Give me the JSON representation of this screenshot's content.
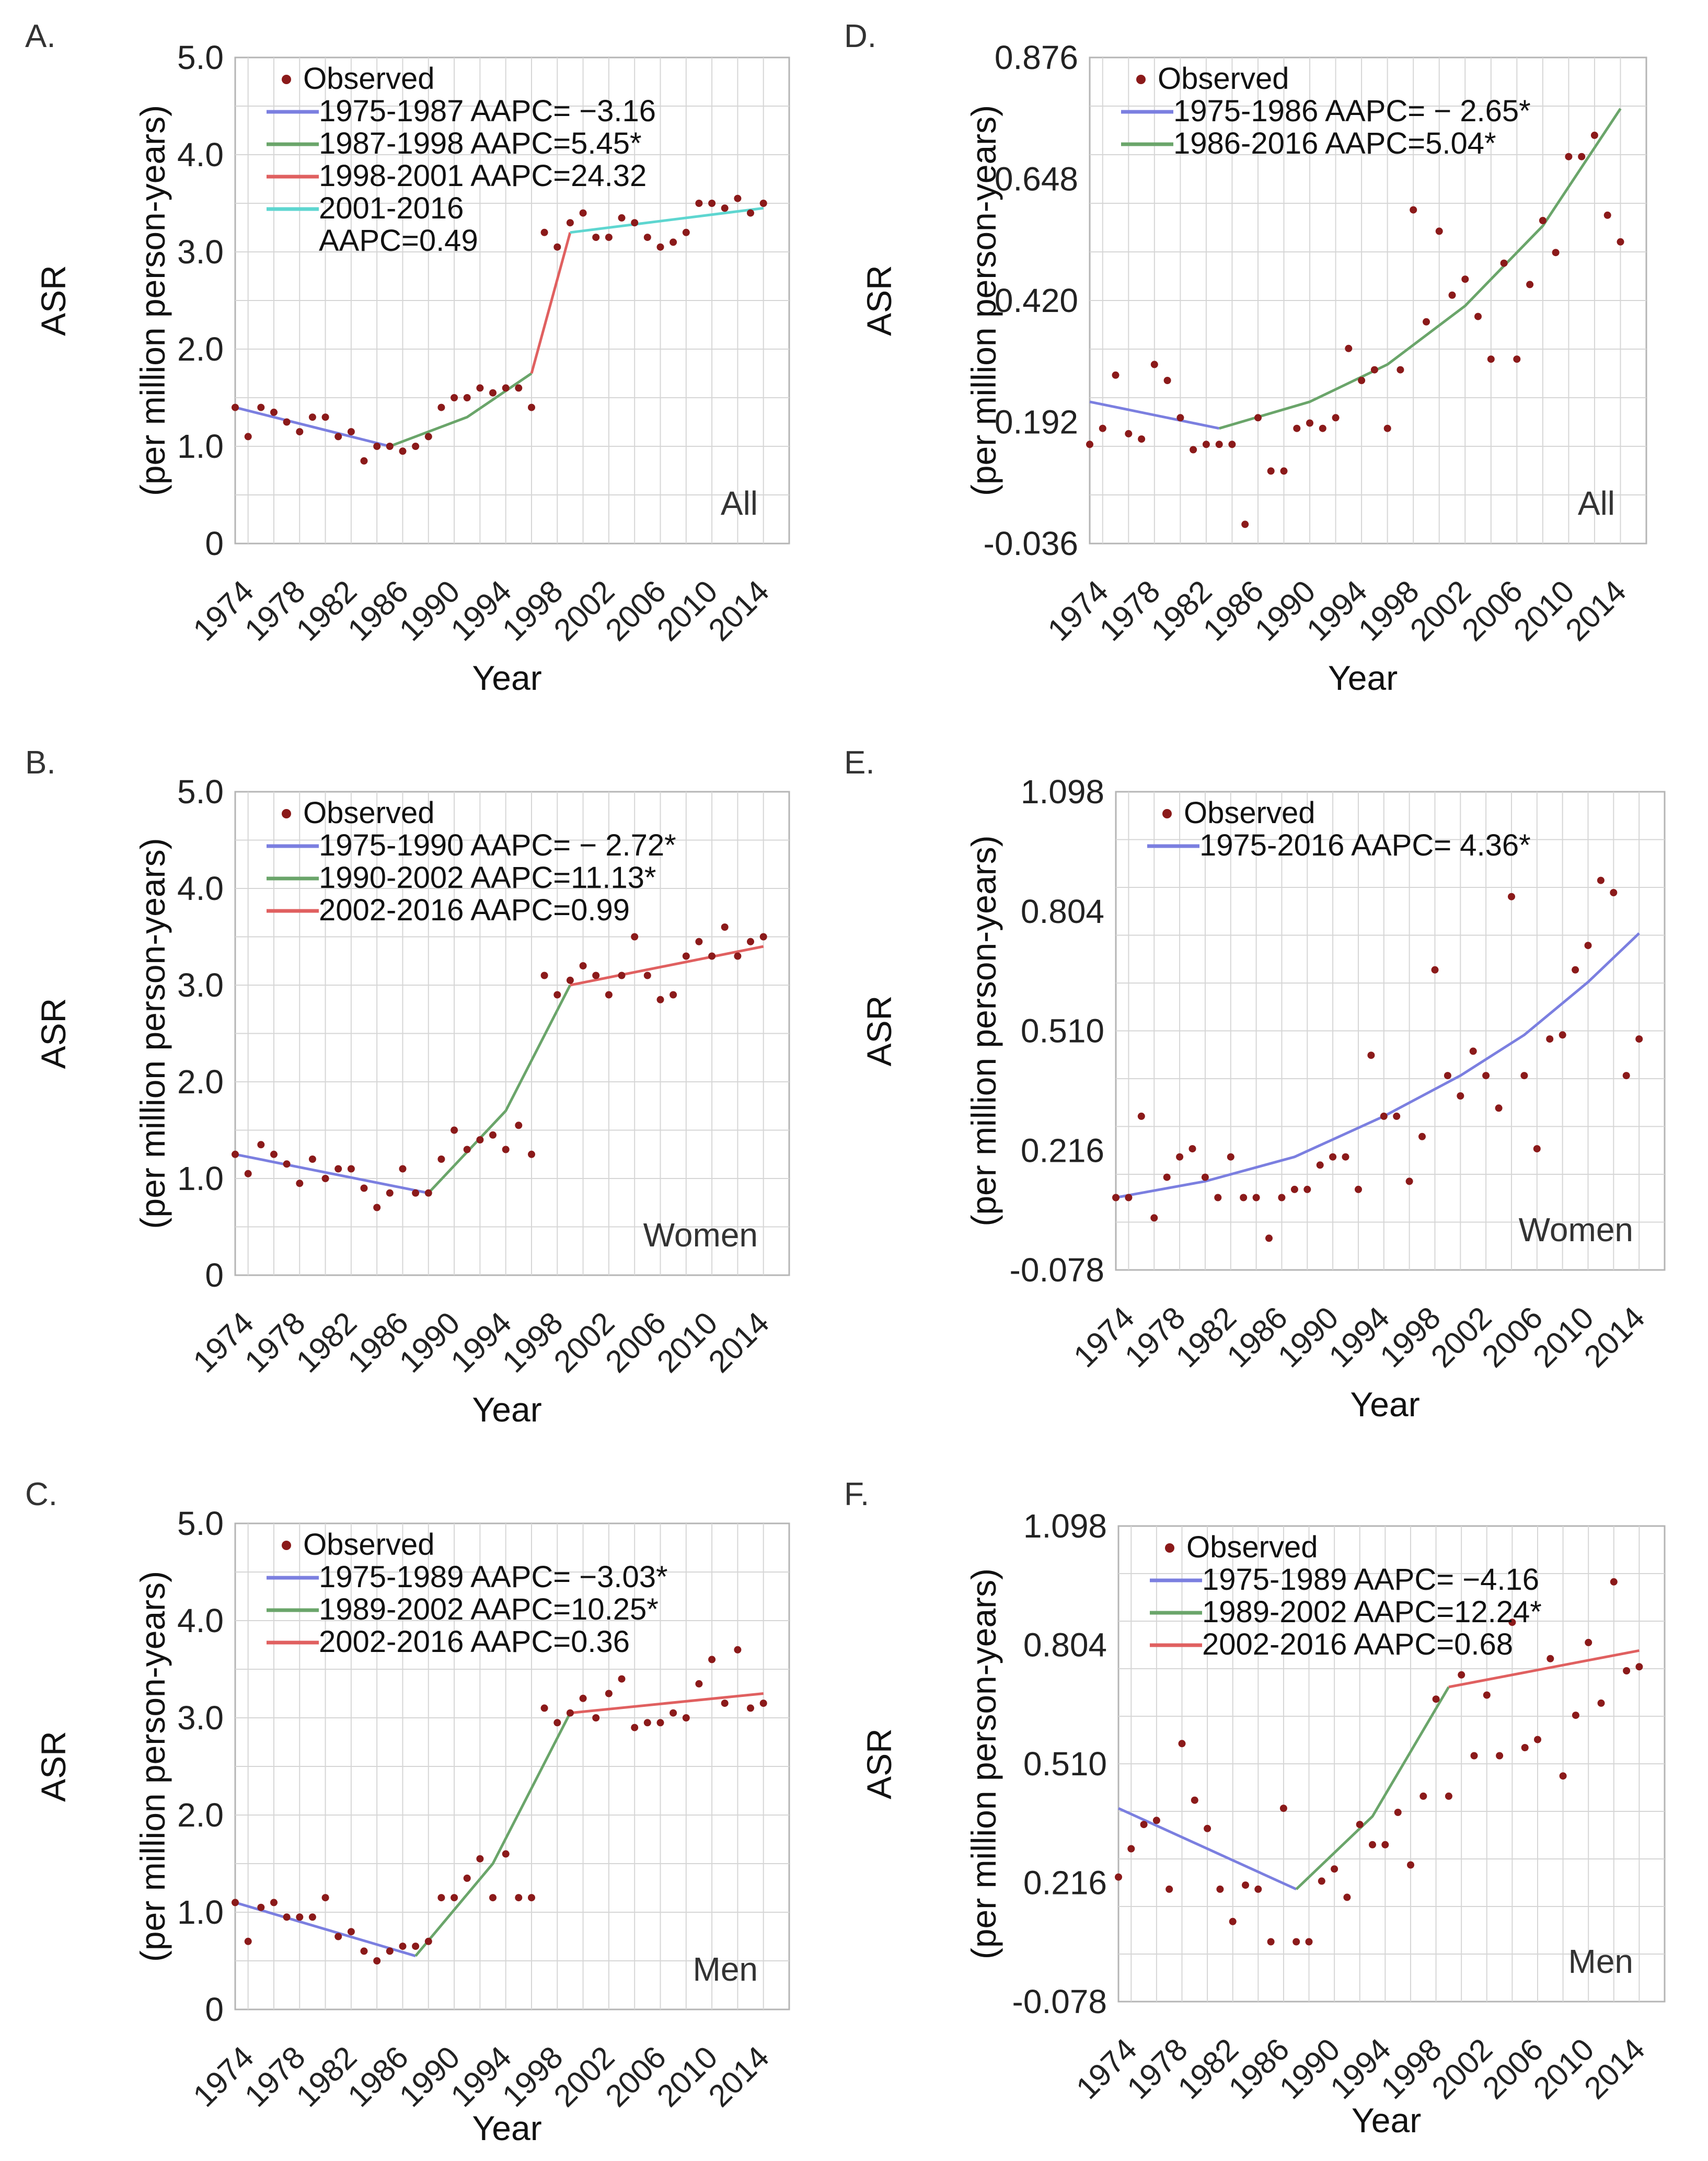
{
  "x_axis": {
    "ticks": [
      "1974",
      "1978",
      "1982",
      "1986",
      "1990",
      "1994",
      "1998",
      "2002",
      "2006",
      "2010",
      "2014"
    ],
    "range": [
      1973,
      2016
    ]
  },
  "colors": {
    "observed": "#8b1a1a",
    "blue": "#7b7fe0",
    "green": "#6aa56a",
    "red": "#e06060",
    "cyan": "#5ed6d0"
  },
  "chart_data": [
    {
      "type": "scatter",
      "panel": "A.",
      "subgroup": "All",
      "xlabel": "Year",
      "ylabel": "ASR",
      "ylabel2": "(per million person-years)",
      "ylim": [
        0,
        5.0
      ],
      "yticks": [
        "0",
        "1.0",
        "2.0",
        "3.0",
        "4.0",
        "5.0"
      ],
      "ytick_values": [
        0,
        1,
        2,
        3,
        4,
        5
      ],
      "legend": [
        {
          "label": "Observed",
          "kind": "marker"
        },
        {
          "label": "1975-1987  AAPC= −3.16",
          "color": "#7b7fe0"
        },
        {
          "label": "1987-1998  AAPC=5.45*",
          "color": "#6aa56a"
        },
        {
          "label": "1998-2001  AAPC=24.32",
          "color": "#e06060"
        },
        {
          "label": "2001-2016",
          "label2": "AAPC=0.49",
          "color": "#5ed6d0"
        }
      ],
      "observed": {
        "x": [
          1973,
          1974,
          1975,
          1976,
          1977,
          1978,
          1979,
          1980,
          1981,
          1982,
          1983,
          1984,
          1985,
          1986,
          1987,
          1988,
          1989,
          1990,
          1991,
          1992,
          1993,
          1994,
          1995,
          1996,
          1997,
          1998,
          1999,
          2000,
          2001,
          2002,
          2003,
          2004,
          2005,
          2006,
          2007,
          2008,
          2009,
          2010,
          2011,
          2012,
          2013,
          2014
        ],
        "y": [
          1.4,
          1.1,
          1.4,
          1.35,
          1.25,
          1.15,
          1.3,
          1.3,
          1.1,
          1.15,
          0.85,
          1.0,
          1.0,
          0.95,
          1.0,
          1.1,
          1.4,
          1.5,
          1.5,
          1.6,
          1.55,
          1.6,
          1.6,
          1.4,
          3.2,
          3.05,
          3.3,
          3.4,
          3.15,
          3.15,
          3.35,
          3.3,
          3.15,
          3.05,
          3.1,
          3.2,
          3.5,
          3.5,
          3.45,
          3.55,
          3.4,
          3.5
        ]
      },
      "fitted": [
        {
          "x": [
            1973,
            1985
          ],
          "y": [
            1.4,
            1.0
          ],
          "color": "#7b7fe0"
        },
        {
          "x": [
            1985,
            1991,
            1996
          ],
          "y": [
            1.0,
            1.3,
            1.75
          ],
          "color": "#6aa56a"
        },
        {
          "x": [
            1996,
            1999
          ],
          "y": [
            1.75,
            3.2
          ],
          "color": "#e06060"
        },
        {
          "x": [
            1999,
            2014
          ],
          "y": [
            3.2,
            3.45
          ],
          "color": "#5ed6d0"
        }
      ]
    },
    {
      "type": "scatter",
      "panel": "B.",
      "subgroup": "Women",
      "xlabel": "Year",
      "ylabel": "ASR",
      "ylabel2": "(per million person-years)",
      "ylim": [
        0,
        5.0
      ],
      "yticks": [
        "0",
        "1.0",
        "2.0",
        "3.0",
        "4.0",
        "5.0"
      ],
      "ytick_values": [
        0,
        1,
        2,
        3,
        4,
        5
      ],
      "legend": [
        {
          "label": "Observed",
          "kind": "marker"
        },
        {
          "label": "1975-1990  AAPC= − 2.72*",
          "color": "#7b7fe0"
        },
        {
          "label": "1990-2002  AAPC=11.13*",
          "color": "#6aa56a"
        },
        {
          "label": "2002-2016  AAPC=0.99",
          "color": "#e06060"
        }
      ],
      "observed": {
        "x": [
          1973,
          1974,
          1975,
          1976,
          1977,
          1978,
          1979,
          1980,
          1981,
          1982,
          1983,
          1984,
          1985,
          1986,
          1987,
          1988,
          1989,
          1990,
          1991,
          1992,
          1993,
          1994,
          1995,
          1996,
          1997,
          1998,
          1999,
          2000,
          2001,
          2002,
          2003,
          2004,
          2005,
          2006,
          2007,
          2008,
          2009,
          2010,
          2011,
          2012,
          2013,
          2014
        ],
        "y": [
          1.25,
          1.05,
          1.35,
          1.25,
          1.15,
          0.95,
          1.2,
          1.0,
          1.1,
          1.1,
          0.9,
          0.7,
          0.85,
          1.1,
          0.85,
          0.85,
          1.2,
          1.5,
          1.3,
          1.4,
          1.45,
          1.3,
          1.55,
          1.25,
          3.1,
          2.9,
          3.05,
          3.2,
          3.1,
          2.9,
          3.1,
          3.5,
          3.1,
          2.85,
          2.9,
          3.3,
          3.45,
          3.3,
          3.6,
          3.3,
          3.45,
          3.5
        ]
      },
      "fitted": [
        {
          "x": [
            1973,
            1988
          ],
          "y": [
            1.25,
            0.85
          ],
          "color": "#7b7fe0"
        },
        {
          "x": [
            1988,
            1994,
            1999
          ],
          "y": [
            0.85,
            1.7,
            3.0
          ],
          "color": "#6aa56a"
        },
        {
          "x": [
            1999,
            2014
          ],
          "y": [
            3.0,
            3.4
          ],
          "color": "#e06060"
        }
      ]
    },
    {
      "type": "scatter",
      "panel": "C.",
      "subgroup": "Men",
      "xlabel": "Year",
      "ylabel": "ASR",
      "ylabel2": "(per million person-years)",
      "ylim": [
        0,
        5.0
      ],
      "yticks": [
        "0",
        "1.0",
        "2.0",
        "3.0",
        "4.0",
        "5.0"
      ],
      "ytick_values": [
        0,
        1,
        2,
        3,
        4,
        5
      ],
      "legend": [
        {
          "label": "Observed",
          "kind": "marker"
        },
        {
          "label": "1975-1989  AAPC= −3.03*",
          "color": "#7b7fe0"
        },
        {
          "label": "1989-2002  AAPC=10.25*",
          "color": "#6aa56a"
        },
        {
          "label": "2002-2016  AAPC=0.36",
          "color": "#e06060"
        }
      ],
      "observed": {
        "x": [
          1973,
          1974,
          1975,
          1976,
          1977,
          1978,
          1979,
          1980,
          1981,
          1982,
          1983,
          1984,
          1985,
          1986,
          1987,
          1988,
          1989,
          1990,
          1991,
          1992,
          1993,
          1994,
          1995,
          1996,
          1997,
          1998,
          1999,
          2000,
          2001,
          2002,
          2003,
          2004,
          2005,
          2006,
          2007,
          2008,
          2009,
          2010,
          2011,
          2012,
          2013,
          2014
        ],
        "y": [
          1.1,
          0.7,
          1.05,
          1.1,
          0.95,
          0.95,
          0.95,
          1.15,
          0.75,
          0.8,
          0.6,
          0.5,
          0.6,
          0.65,
          0.65,
          0.7,
          1.15,
          1.15,
          1.35,
          1.55,
          1.15,
          1.6,
          1.15,
          1.15,
          3.1,
          2.95,
          3.05,
          3.2,
          3.0,
          3.25,
          3.4,
          2.9,
          2.95,
          2.95,
          3.05,
          3.0,
          3.35,
          3.6,
          3.15,
          3.7,
          3.1,
          3.15
        ]
      },
      "fitted": [
        {
          "x": [
            1973,
            1987
          ],
          "y": [
            1.1,
            0.55
          ],
          "color": "#7b7fe0"
        },
        {
          "x": [
            1987,
            1993,
            1999
          ],
          "y": [
            0.55,
            1.5,
            3.05
          ],
          "color": "#6aa56a"
        },
        {
          "x": [
            1999,
            2014
          ],
          "y": [
            3.05,
            3.25
          ],
          "color": "#e06060"
        }
      ]
    },
    {
      "type": "scatter",
      "panel": "D.",
      "subgroup": "All",
      "xlabel": "Year",
      "ylabel": "ASR",
      "ylabel2": "(per million person-years)",
      "ylim": [
        -0.036,
        0.876
      ],
      "yticks": [
        "-0.036",
        "0.192",
        "0.420",
        "0.648",
        "0.876"
      ],
      "ytick_values": [
        -0.036,
        0.192,
        0.42,
        0.648,
        0.876
      ],
      "legend": [
        {
          "label": "Observed",
          "kind": "marker"
        },
        {
          "label": "1975-1986  AAPC= − 2.65*",
          "color": "#7b7fe0"
        },
        {
          "label": "1986-2016  AAPC=5.04*",
          "color": "#6aa56a"
        }
      ],
      "observed": {
        "x": [
          1973,
          1974,
          1975,
          1976,
          1977,
          1978,
          1979,
          1980,
          1981,
          1982,
          1983,
          1984,
          1985,
          1986,
          1987,
          1988,
          1989,
          1990,
          1991,
          1992,
          1993,
          1994,
          1995,
          1996,
          1997,
          1998,
          1999,
          2000,
          2001,
          2002,
          2003,
          2004,
          2005,
          2006,
          2007,
          2008,
          2009,
          2010,
          2011,
          2012,
          2013,
          2014
        ],
        "y": [
          0.15,
          0.18,
          0.28,
          0.17,
          0.16,
          0.3,
          0.27,
          0.2,
          0.14,
          0.15,
          0.15,
          0.15,
          0.0,
          0.2,
          0.1,
          0.1,
          0.18,
          0.19,
          0.18,
          0.2,
          0.33,
          0.27,
          0.29,
          0.18,
          0.29,
          0.59,
          0.38,
          0.55,
          0.43,
          0.46,
          0.39,
          0.31,
          0.49,
          0.31,
          0.45,
          0.57,
          0.51,
          0.69,
          0.69,
          0.73,
          0.58,
          0.53
        ]
      },
      "fitted": [
        {
          "x": [
            1973,
            1983
          ],
          "y": [
            0.23,
            0.18
          ],
          "color": "#7b7fe0"
        },
        {
          "x": [
            1983,
            1990,
            1996,
            2002,
            2008,
            2014
          ],
          "y": [
            0.18,
            0.23,
            0.3,
            0.41,
            0.56,
            0.78
          ],
          "color": "#6aa56a"
        }
      ]
    },
    {
      "type": "scatter",
      "panel": "E.",
      "subgroup": "Women",
      "xlabel": "Year",
      "ylabel": "ASR",
      "ylabel2": "(per million person-years)",
      "ylim": [
        -0.078,
        1.098
      ],
      "yticks": [
        "-0.078",
        "0.216",
        "0.510",
        "0.804",
        "1.098"
      ],
      "ytick_values": [
        -0.078,
        0.216,
        0.51,
        0.804,
        1.098
      ],
      "legend": [
        {
          "label": "Observed",
          "kind": "marker"
        },
        {
          "label": "1975-2016  AAPC= 4.36*",
          "color": "#7b7fe0"
        }
      ],
      "observed": {
        "x": [
          1973,
          1974,
          1975,
          1976,
          1977,
          1978,
          1979,
          1980,
          1981,
          1982,
          1983,
          1984,
          1985,
          1986,
          1987,
          1988,
          1989,
          1990,
          1991,
          1992,
          1993,
          1994,
          1995,
          1996,
          1997,
          1998,
          1999,
          2000,
          2001,
          2002,
          2003,
          2004,
          2005,
          2006,
          2007,
          2008,
          2009,
          2010,
          2011,
          2012,
          2013,
          2014
        ],
        "y": [
          0.1,
          0.1,
          0.3,
          0.05,
          0.15,
          0.2,
          0.22,
          0.15,
          0.1,
          0.2,
          0.1,
          0.1,
          0.0,
          0.1,
          0.12,
          0.12,
          0.18,
          0.2,
          0.2,
          0.12,
          0.45,
          0.3,
          0.3,
          0.14,
          0.25,
          0.66,
          0.4,
          0.35,
          0.46,
          0.4,
          0.32,
          0.84,
          0.4,
          0.22,
          0.49,
          0.5,
          0.66,
          0.72,
          0.88,
          0.85,
          0.4,
          0.49
        ]
      },
      "fitted": [
        {
          "x": [
            1973,
            1980,
            1987,
            1994,
            2000,
            2005,
            2010,
            2014
          ],
          "y": [
            0.1,
            0.14,
            0.2,
            0.3,
            0.4,
            0.5,
            0.63,
            0.75
          ],
          "color": "#7b7fe0"
        }
      ]
    },
    {
      "type": "scatter",
      "panel": "F.",
      "subgroup": "Men",
      "xlabel": "Year",
      "ylabel": "ASR",
      "ylabel2": "(per million person-years)",
      "ylim": [
        -0.078,
        1.098
      ],
      "yticks": [
        "-0.078",
        "0.216",
        "0.510",
        "0.804",
        "1.098"
      ],
      "ytick_values": [
        -0.078,
        0.216,
        0.51,
        0.804,
        1.098
      ],
      "legend": [
        {
          "label": "Observed",
          "kind": "marker"
        },
        {
          "label": "1975-1989  AAPC= −4.16",
          "color": "#7b7fe0"
        },
        {
          "label": "1989-2002  AAPC=12.24*",
          "color": "#6aa56a"
        },
        {
          "label": "2002-2016  AAPC=0.68",
          "color": "#e06060"
        }
      ],
      "observed": {
        "x": [
          1973,
          1974,
          1975,
          1976,
          1977,
          1978,
          1979,
          1980,
          1981,
          1982,
          1983,
          1984,
          1985,
          1986,
          1987,
          1988,
          1989,
          1990,
          1991,
          1992,
          1993,
          1994,
          1995,
          1996,
          1997,
          1998,
          1999,
          2000,
          2001,
          2002,
          2003,
          2004,
          2005,
          2006,
          2007,
          2008,
          2009,
          2010,
          2011,
          2012,
          2013,
          2014
        ],
        "y": [
          0.23,
          0.3,
          0.36,
          0.37,
          0.2,
          0.56,
          0.42,
          0.35,
          0.2,
          0.12,
          0.21,
          0.2,
          0.07,
          0.4,
          0.07,
          0.07,
          0.22,
          0.25,
          0.18,
          0.36,
          0.31,
          0.31,
          0.39,
          0.26,
          0.43,
          0.67,
          0.43,
          0.73,
          0.53,
          0.68,
          0.53,
          0.86,
          0.55,
          0.57,
          0.77,
          0.48,
          0.63,
          0.81,
          0.66,
          0.96,
          0.74,
          0.75
        ]
      },
      "fitted": [
        {
          "x": [
            1973,
            1987
          ],
          "y": [
            0.4,
            0.2
          ],
          "color": "#7b7fe0"
        },
        {
          "x": [
            1987,
            1993,
            1999
          ],
          "y": [
            0.2,
            0.38,
            0.7
          ],
          "color": "#6aa56a"
        },
        {
          "x": [
            1999,
            2014
          ],
          "y": [
            0.7,
            0.79
          ],
          "color": "#e06060"
        }
      ]
    }
  ]
}
